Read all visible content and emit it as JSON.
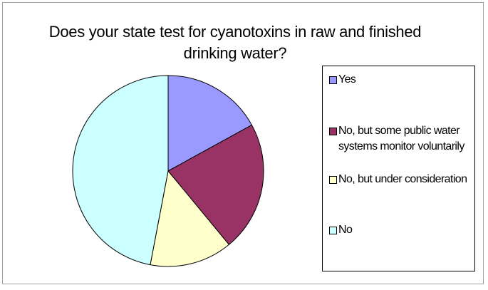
{
  "chart_data": {
    "type": "pie",
    "title": "Does your state test for cyanotoxins in raw and finished drinking water?",
    "categories": [
      "Yes",
      "No, but some public water systems monitor voluntarily",
      "No, but under consideration",
      "No"
    ],
    "values": [
      17,
      22,
      14,
      47
    ],
    "colors": [
      "#9999ff",
      "#993366",
      "#ffffcc",
      "#ccffff"
    ],
    "legend": "right"
  }
}
